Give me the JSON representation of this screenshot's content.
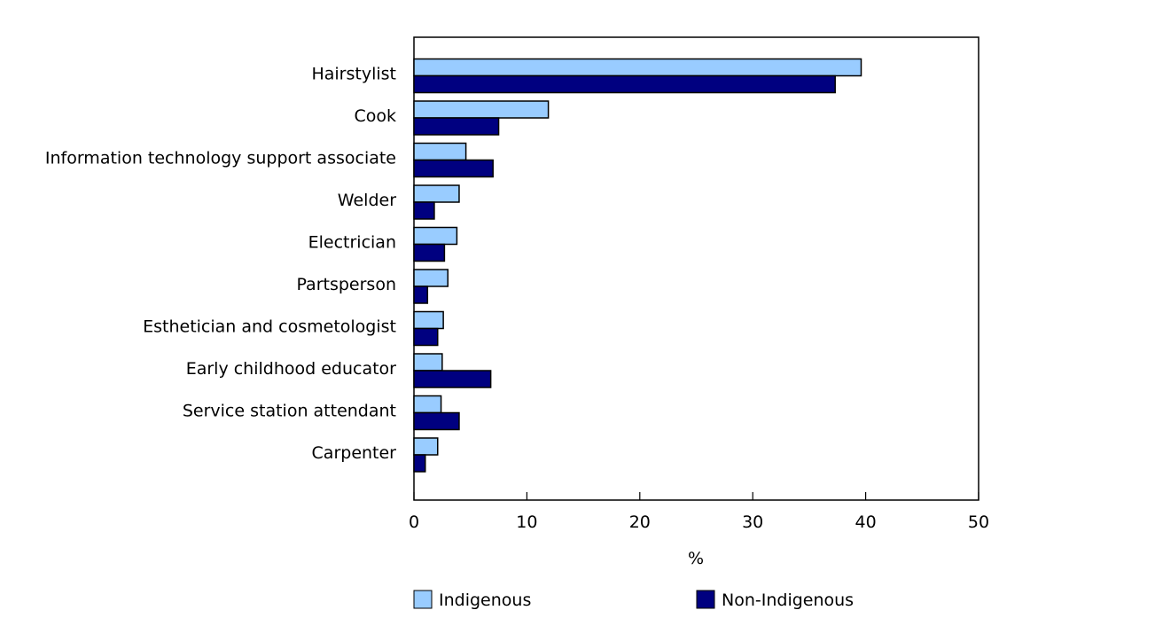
{
  "chart_data": {
    "type": "bar",
    "orientation": "horizontal",
    "title": "",
    "categories": [
      "Hairstylist",
      "Cook",
      "Information technology support associate",
      "Welder",
      "Electrician",
      "Partsperson",
      "Esthetician and cosmetologist",
      "Early childhood educator",
      "Service station attendant",
      "Carpenter"
    ],
    "series": [
      {
        "name": "Indigenous",
        "color": "#99ccff",
        "values": [
          39.6,
          11.9,
          4.6,
          4.0,
          3.8,
          3.0,
          2.6,
          2.5,
          2.4,
          2.1
        ]
      },
      {
        "name": "Non-Indigenous",
        "color": "#000080",
        "values": [
          37.3,
          7.5,
          7.0,
          1.8,
          2.7,
          1.2,
          2.1,
          6.8,
          4.0,
          1.0
        ]
      }
    ],
    "xlabel": "%",
    "ylabel": "",
    "xlim": [
      0,
      50
    ],
    "xticks": [
      "0",
      "10",
      "20",
      "30",
      "40",
      "50"
    ],
    "grid": false,
    "legend_position": "bottom"
  }
}
